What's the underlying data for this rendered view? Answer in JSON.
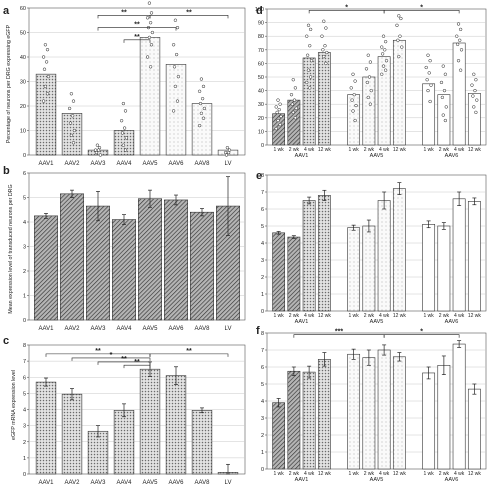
{
  "chart_data": [
    {
      "id": "a",
      "panel_label": "a",
      "type": "bar",
      "ylabel": "Percentage of neurons per DRG expressing eGFP",
      "ylim": [
        0,
        60
      ],
      "yticks": [
        0,
        10,
        20,
        30,
        40,
        50,
        60
      ],
      "grid": true,
      "categories": [
        "AAV1",
        "AAV2",
        "AAV3",
        "AAV4",
        "AAV5",
        "AAV6",
        "AAV8",
        "LV"
      ],
      "values": [
        33,
        17,
        2,
        10,
        48,
        37,
        21,
        2
      ],
      "style": [
        "dots",
        "dots",
        "dots",
        "dots",
        "light",
        "light",
        "light",
        "light"
      ],
      "points": [
        [
          45,
          43,
          40,
          38,
          35,
          32,
          28,
          25,
          22
        ],
        [
          25,
          22,
          19,
          16,
          13,
          10,
          8,
          5
        ],
        [
          4,
          3,
          2,
          2,
          1,
          0
        ],
        [
          21,
          18,
          14,
          11,
          9,
          7,
          4,
          2
        ],
        [
          62,
          58,
          56,
          54,
          52,
          50,
          48,
          45,
          40,
          36
        ],
        [
          55,
          52,
          45,
          41,
          36,
          32,
          28,
          22,
          18
        ],
        [
          31,
          28,
          26,
          23,
          21,
          19,
          17,
          15,
          12
        ],
        [
          3,
          2,
          1,
          1,
          0
        ]
      ],
      "brackets": [
        {
          "from": 2,
          "to": 4,
          "level": 57,
          "label": "**"
        },
        {
          "from": 4,
          "to": 7,
          "level": 57,
          "label": "**"
        },
        {
          "from": 2,
          "to": 5,
          "level": 52,
          "label": "**"
        },
        {
          "from": 3,
          "to": 4,
          "level": 47,
          "label": "**"
        }
      ]
    },
    {
      "id": "b",
      "panel_label": "b",
      "type": "bar",
      "ylabel": "Mean expression level of transduced neurons per DRG",
      "ylim": [
        0,
        6
      ],
      "yticks": [
        0,
        1,
        2,
        3,
        4,
        5,
        6
      ],
      "grid": true,
      "categories": [
        "AAV1",
        "AAV2",
        "AAV3",
        "AAV4",
        "AAV5",
        "AAV6",
        "AAV8",
        "LV"
      ],
      "values": [
        4.25,
        5.15,
        4.65,
        4.1,
        4.95,
        4.9,
        4.4,
        4.65
      ],
      "errors": [
        0.1,
        0.15,
        0.6,
        0.2,
        0.35,
        0.2,
        0.15,
        1.2
      ],
      "style": [
        "hatch",
        "hatch",
        "hatch",
        "hatch",
        "hatch",
        "hatch",
        "hatch",
        "hatch"
      ]
    },
    {
      "id": "c",
      "panel_label": "c",
      "type": "bar",
      "ylabel": "eGFP mRNA expression level",
      "ylim": [
        0,
        8
      ],
      "yticks": [
        0,
        1,
        2,
        3,
        4,
        5,
        6,
        7,
        8
      ],
      "grid": true,
      "categories": [
        "AAV1",
        "AAV2",
        "AAV3",
        "AAV4",
        "AAV5",
        "AAV6",
        "AAV8",
        "LV"
      ],
      "values": [
        5.7,
        4.95,
        2.65,
        3.95,
        6.5,
        6.1,
        3.95,
        0.1
      ],
      "errors": [
        0.25,
        0.35,
        0.35,
        0.4,
        0.45,
        0.55,
        0.15,
        0.5
      ],
      "style": [
        "dots",
        "dots",
        "dots",
        "dots",
        "dots",
        "dots",
        "dots",
        "dots"
      ],
      "brackets": [
        {
          "from": 0,
          "to": 4,
          "level": 7.45,
          "label": "**"
        },
        {
          "from": 4,
          "to": 7,
          "level": 7.45,
          "label": "**"
        },
        {
          "from": 1,
          "to": 4,
          "level": 7.2,
          "label": "*"
        },
        {
          "from": 2,
          "to": 4,
          "level": 6.95,
          "label": "**"
        },
        {
          "from": 3,
          "to": 4,
          "level": 6.75,
          "label": "**"
        }
      ]
    },
    {
      "id": "d",
      "panel_label": "d",
      "type": "bar",
      "ylim": [
        0,
        100
      ],
      "yticks": [
        0,
        10,
        20,
        30,
        40,
        50,
        60,
        70,
        80,
        90,
        100
      ],
      "grid": true,
      "categories": [
        "1 wk",
        "2 wk",
        "4 wk",
        "12 wk",
        "1 wk",
        "2 wk",
        "4 wk",
        "12 wk",
        "1 wk",
        "2 wk",
        "4 wk",
        "12 wk"
      ],
      "groups": [
        "AAV1",
        "AAV5",
        "AAV6"
      ],
      "values": [
        23,
        33,
        64,
        68,
        37,
        50,
        65,
        77,
        45,
        37,
        75,
        38
      ],
      "style": [
        "hatch",
        "hatch",
        "dots",
        "dots",
        "light",
        "light",
        "light",
        "light",
        "plain",
        "plain",
        "plain",
        "plain"
      ],
      "points": [
        [
          33,
          30,
          28,
          26,
          24,
          21,
          18,
          15,
          12
        ],
        [
          48,
          42,
          37,
          33,
          30,
          27,
          24,
          20
        ],
        [
          88,
          85,
          80,
          73,
          66,
          62,
          55,
          50,
          46,
          42
        ],
        [
          91,
          86,
          80,
          73,
          70,
          68,
          65,
          60
        ],
        [
          52,
          47,
          42,
          37,
          33,
          29,
          25,
          18
        ],
        [
          66,
          61,
          56,
          50,
          46,
          40,
          35,
          30
        ],
        [
          80,
          76,
          72,
          70,
          67,
          62,
          58,
          55,
          52
        ],
        [
          95,
          93,
          88,
          80,
          77,
          72,
          65
        ],
        [
          66,
          62,
          57,
          53,
          48,
          44,
          40,
          32
        ],
        [
          58,
          52,
          46,
          40,
          35,
          28,
          22,
          18
        ],
        [
          89,
          85,
          80,
          77,
          74,
          70,
          62,
          55
        ],
        [
          52,
          48,
          44,
          40,
          36,
          33,
          28,
          24
        ]
      ],
      "brackets": [
        {
          "from": 2,
          "to": 6,
          "level": 99,
          "label": "*"
        },
        {
          "from": 6,
          "to": 10,
          "level": 99,
          "label": "*"
        }
      ]
    },
    {
      "id": "e",
      "panel_label": "e",
      "type": "bar",
      "ylim": [
        0,
        8
      ],
      "yticks": [
        0,
        1,
        2,
        3,
        4,
        5,
        6,
        7,
        8
      ],
      "grid": true,
      "categories": [
        "1 wk",
        "2 wk",
        "4 wk",
        "12 wk",
        "1 wk",
        "2 wk",
        "4 wk",
        "12 wk",
        "1 wk",
        "2 wk",
        "4 wk",
        "12 wk"
      ],
      "groups": [
        "AAV1",
        "AAV5",
        "AAV6"
      ],
      "values": [
        4.6,
        4.35,
        6.5,
        6.8,
        4.9,
        5.0,
        6.5,
        7.2,
        5.1,
        5.0,
        6.6,
        6.45
      ],
      "errors": [
        0.08,
        0.08,
        0.2,
        0.3,
        0.15,
        0.35,
        0.5,
        0.35,
        0.2,
        0.2,
        0.4,
        0.2
      ],
      "style": [
        "hatch",
        "hatch",
        "dots",
        "dots",
        "light",
        "light",
        "light",
        "light",
        "plain",
        "plain",
        "plain",
        "plain"
      ]
    },
    {
      "id": "f",
      "panel_label": "f",
      "type": "bar",
      "ylim": [
        0,
        8
      ],
      "yticks": [
        0,
        1,
        2,
        3,
        4,
        5,
        6,
        7,
        8
      ],
      "grid": true,
      "categories": [
        "1 wk",
        "2 wk",
        "4 wk",
        "12 wk",
        "1 wk",
        "2 wk",
        "4 wk",
        "12 wk",
        "1 wk",
        "2 wk",
        "4 wk",
        "12 wk"
      ],
      "groups": [
        "AAV1",
        "AAV5",
        "AAV6"
      ],
      "values": [
        3.9,
        5.75,
        5.7,
        6.45,
        6.75,
        6.55,
        7.0,
        6.6,
        5.65,
        6.1,
        7.35,
        4.7
      ],
      "errors": [
        0.25,
        0.25,
        0.35,
        0.4,
        0.3,
        0.45,
        0.3,
        0.25,
        0.35,
        0.55,
        0.2,
        0.3
      ],
      "style": [
        "hatch",
        "hatch",
        "dots",
        "dots",
        "light",
        "light",
        "light",
        "light",
        "plain",
        "plain",
        "plain",
        "plain"
      ],
      "brackets": [
        {
          "from": 1,
          "to": 6,
          "level": 7.9,
          "label": "***"
        },
        {
          "from": 6,
          "to": 10,
          "level": 7.9,
          "label": "*"
        }
      ]
    }
  ]
}
